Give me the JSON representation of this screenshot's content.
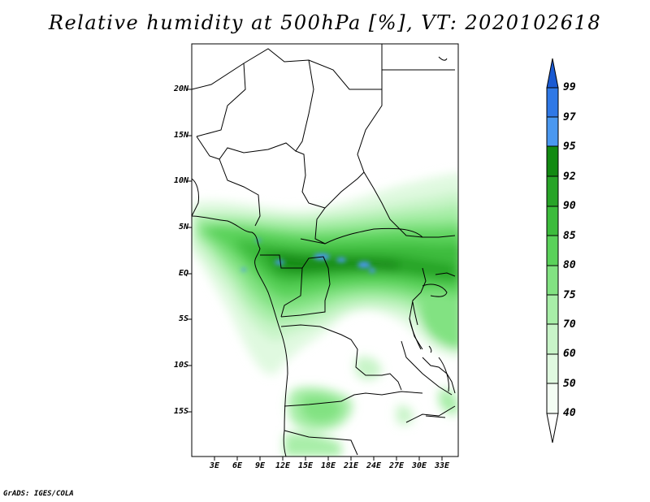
{
  "title": "Relative humidity at 500hPa [%], VT: 2020102618",
  "credit": "GrADS: IGES/COLA",
  "map": {
    "lat_labels": [
      "20N",
      "15N",
      "10N",
      "5N",
      "EQ",
      "5S",
      "10S",
      "15S"
    ],
    "lon_labels": [
      "3E",
      "6E",
      "9E",
      "12E",
      "15E",
      "18E",
      "21E",
      "24E",
      "27E",
      "30E",
      "33E"
    ]
  },
  "colorbar": {
    "levels": [
      "99",
      "97",
      "95",
      "92",
      "90",
      "85",
      "80",
      "75",
      "70",
      "60",
      "50",
      "40"
    ],
    "colors": [
      "#1a5ad2",
      "#2f78e6",
      "#4a98f0",
      "#128a12",
      "#28a428",
      "#3cbc3c",
      "#5ad25a",
      "#82e282",
      "#a8eea8",
      "#c8f4c8",
      "#e0f9e0",
      "#f4fdf4"
    ]
  }
}
